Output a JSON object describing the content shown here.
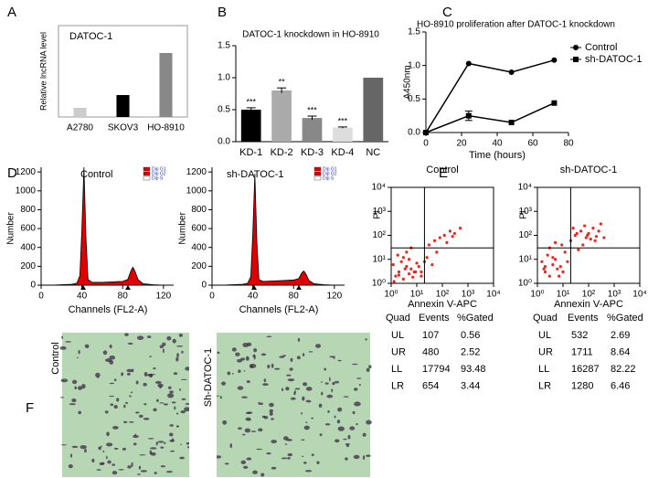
{
  "panel_labels": [
    "A",
    "B",
    "C",
    "D",
    "E",
    "F"
  ],
  "chart_data": [
    {
      "type": "bar",
      "title": "DATOC-1",
      "ylabel": "Relative lncRNA level",
      "categories": [
        "A2780",
        "SKOV3",
        "HO-8910"
      ],
      "values": [
        0.05,
        0.12,
        0.35
      ],
      "colors": [
        "#cccccc",
        "#000000",
        "#888888"
      ],
      "ylim": [
        0,
        0.5
      ]
    },
    {
      "type": "bar",
      "title": "DATOC-1 knockdown in HO-8910",
      "categories": [
        "KD-1",
        "KD-2",
        "KD-3",
        "KD-4",
        "NC"
      ],
      "values": [
        0.5,
        0.8,
        0.37,
        0.22,
        1.0
      ],
      "errors": [
        0.03,
        0.04,
        0.03,
        0.01,
        0
      ],
      "annotations": [
        "***",
        "**",
        "***",
        "***",
        null
      ],
      "colors": [
        "#000000",
        "#aaaaaa",
        "#888888",
        "#dddddd",
        "#666666"
      ],
      "ylim": [
        0,
        1.5
      ],
      "yticks": [
        {
          "value": 0,
          "label": "0.0"
        },
        0.5,
        {
          "value": 1,
          "label": "1.0"
        },
        1.5
      ]
    },
    {
      "type": "line",
      "title": "HO-8910 proliferation after DATOC-1 knockdown",
      "xlabel": "Time (hours)",
      "ylabel": "A450nm",
      "x": [
        0,
        24,
        48,
        72
      ],
      "series": [
        {
          "name": "Control",
          "color": "#000000",
          "marker": "circle",
          "values": [
            0,
            1.03,
            0.9,
            1.08
          ]
        },
        {
          "name": "sh-DATOC-1",
          "color": "#000000",
          "marker": "square",
          "values": [
            0,
            0.25,
            0.15,
            0.44
          ],
          "errors": [
            0,
            0.07,
            0,
            0
          ]
        }
      ],
      "xlim": [
        0,
        80
      ],
      "xticks": [
        0,
        20,
        40,
        60,
        80
      ],
      "ylim": [
        0,
        1.5
      ],
      "yticks": [
        {
          "value": 0,
          "label": "0.0"
        },
        0.5,
        {
          "value": 1,
          "label": "1.0"
        },
        1.5
      ],
      "legend": "right"
    },
    {
      "type": "area",
      "title": "Control",
      "xlabel": "Channels (FL2-A)",
      "ylabel": "Number",
      "legend": [
        "Dip G1",
        "Dip G2",
        "Dip S"
      ],
      "x": [
        0,
        10,
        20,
        30,
        35,
        38,
        40,
        42,
        44,
        46,
        50,
        60,
        70,
        80,
        85,
        88,
        90,
        92,
        95,
        100,
        110,
        120,
        130
      ],
      "values": [
        0,
        0,
        5,
        10,
        20,
        100,
        600,
        1250,
        500,
        60,
        30,
        30,
        35,
        40,
        60,
        150,
        190,
        150,
        60,
        15,
        5,
        0,
        0
      ],
      "color": "#e00000",
      "xlim": [
        0,
        130
      ],
      "xticks": [
        0,
        40,
        80,
        120
      ],
      "ylim": [
        0,
        1250
      ],
      "yticks": [
        0,
        200,
        400,
        600,
        800,
        1000,
        1200
      ]
    },
    {
      "type": "area",
      "title": "sh-DATOC-1",
      "xlabel": "Channels (FL2-A)",
      "ylabel": "Number",
      "legend": [
        "Dip G1",
        "Dip G2",
        "Dip S"
      ],
      "x": [
        0,
        10,
        20,
        30,
        35,
        38,
        40,
        42,
        44,
        46,
        50,
        60,
        70,
        80,
        85,
        88,
        90,
        92,
        95,
        100,
        110,
        120,
        130
      ],
      "values": [
        0,
        0,
        5,
        10,
        20,
        90,
        550,
        1180,
        450,
        60,
        40,
        45,
        50,
        55,
        70,
        130,
        150,
        120,
        50,
        15,
        5,
        0,
        0
      ],
      "color": "#e00000",
      "xlim": [
        0,
        130
      ],
      "xticks": [
        0,
        40,
        80,
        120
      ],
      "ylim": [
        0,
        1250
      ],
      "yticks": [
        0,
        200,
        400,
        600,
        800,
        1000,
        1200
      ]
    },
    {
      "type": "scatter",
      "title": "Control",
      "xlabel": "Annexin V-APC",
      "ylabel": "PI",
      "log": true,
      "x": [
        1.5,
        2,
        3,
        4,
        2.5,
        5,
        6,
        3,
        1.2,
        8,
        10,
        4,
        7,
        2,
        3.5,
        5,
        1.8,
        12,
        15,
        6,
        9,
        20,
        30,
        50,
        80,
        120,
        200,
        300,
        500,
        40,
        60,
        150,
        250,
        15,
        25,
        1.3
      ],
      "values": [
        2,
        3,
        1.5,
        5,
        8,
        2.5,
        4,
        12,
        6,
        3,
        7,
        20,
        1.8,
        2.2,
        4,
        10,
        15,
        5,
        2,
        30,
        3,
        8,
        40,
        60,
        80,
        100,
        150,
        120,
        200,
        6,
        20,
        50,
        90,
        3,
        12,
        1.2
      ],
      "color": "#e8261e",
      "quadrant": [
        20,
        30
      ],
      "xlim": [
        1,
        10000
      ],
      "xticks": [
        {
          "value": 1,
          "label": "10⁰"
        },
        {
          "value": 10,
          "label": "10¹"
        },
        {
          "value": 100,
          "label": "10²"
        },
        {
          "value": 1000,
          "label": "10³"
        },
        {
          "value": 10000,
          "label": "10⁴"
        }
      ],
      "ylim": [
        1,
        10000
      ],
      "yticks": [
        {
          "value": 1,
          "label": "10⁰"
        },
        {
          "value": 10,
          "label": "10¹"
        },
        {
          "value": 100,
          "label": "10²"
        },
        {
          "value": 1000,
          "label": "10³"
        },
        {
          "value": 10000,
          "label": "10⁴"
        }
      ]
    },
    {
      "type": "scatter",
      "title": "sh-DATOC-1",
      "xlabel": "Annexin V-APC",
      "ylabel": "PI",
      "log": true,
      "x": [
        2,
        3,
        4,
        5,
        2.5,
        6,
        8,
        3,
        1.5,
        10,
        12,
        5,
        7,
        2,
        4,
        15,
        20,
        30,
        50,
        80,
        100,
        150,
        200,
        300,
        60,
        120,
        40,
        250,
        25,
        90,
        180,
        35,
        70,
        400,
        9,
        1.8
      ],
      "values": [
        3,
        2,
        6,
        10,
        15,
        4,
        5,
        30,
        8,
        3,
        20,
        50,
        2,
        5,
        12,
        8,
        60,
        100,
        150,
        80,
        120,
        200,
        90,
        300,
        40,
        70,
        25,
        150,
        200,
        100,
        60,
        120,
        250,
        80,
        40,
        4
      ],
      "color": "#e8261e",
      "quadrant": [
        20,
        30
      ],
      "xlim": [
        1,
        10000
      ],
      "xticks": [
        {
          "value": 1,
          "label": "10⁰"
        },
        {
          "value": 10,
          "label": "10¹"
        },
        {
          "value": 100,
          "label": "10²"
        },
        {
          "value": 1000,
          "label": "10³"
        },
        {
          "value": 10000,
          "label": "10⁴"
        }
      ],
      "ylim": [
        1,
        10000
      ],
      "yticks": [
        {
          "value": 1,
          "label": "10⁰"
        },
        {
          "value": 10,
          "label": "10¹"
        },
        {
          "value": 100,
          "label": "10²"
        },
        {
          "value": 1000,
          "label": "10³"
        },
        {
          "value": 10000,
          "label": "10⁴"
        }
      ]
    }
  ],
  "tables": [
    {
      "header": [
        "Quad",
        "Events",
        "%Gated"
      ],
      "rows": [
        [
          "UL",
          107,
          0.56
        ],
        [
          "UR",
          480,
          2.52
        ],
        [
          "LL",
          17794,
          93.48
        ],
        [
          "LR",
          654,
          3.44
        ]
      ]
    },
    {
      "header": [
        "Quad",
        "Events",
        "%Gated"
      ],
      "rows": [
        [
          "UL",
          532,
          2.69
        ],
        [
          "UR",
          1711,
          8.64
        ],
        [
          "LL",
          16287,
          82.22
        ],
        [
          "LR",
          1280,
          6.46
        ]
      ]
    }
  ],
  "images": {
    "labels": [
      "Control",
      "Sh-DATOC-1"
    ]
  }
}
